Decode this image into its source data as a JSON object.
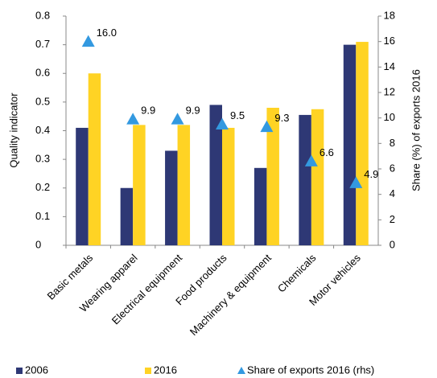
{
  "chart_data": {
    "type": "bar",
    "categories": [
      "Basic metals",
      "Wearing apparel",
      "Electrical equipment",
      "Food products",
      "Machinery & equipment",
      "Chemicals",
      "Motor vehicles"
    ],
    "y_label": "Quality indicator",
    "y2_label": "Share (%)  of exports 2016",
    "ylim": [
      0,
      0.8
    ],
    "yticks": [
      0,
      0.1,
      0.2,
      0.3,
      0.4,
      0.5,
      0.6,
      0.7,
      0.8
    ],
    "y2lim": [
      0,
      18
    ],
    "y2ticks": [
      0,
      2,
      4,
      6,
      8,
      10,
      12,
      14,
      16,
      18
    ],
    "series": [
      {
        "name": "2006",
        "color": "#2e3875",
        "values": [
          0.41,
          0.2,
          0.33,
          0.49,
          0.27,
          0.455,
          0.7
        ]
      },
      {
        "name": "2016",
        "color": "#ffd324",
        "values": [
          0.6,
          0.42,
          0.42,
          0.41,
          0.48,
          0.475,
          0.71
        ]
      },
      {
        "name": "Share of exports 2016 (rhs)",
        "color": "#3399e0",
        "axis": "y2",
        "values": [
          16,
          9.9,
          9.9,
          9.5,
          9.3,
          6.6,
          4.9
        ],
        "value_labels": [
          "16.0",
          "9.9",
          "9.9",
          "9.5",
          "9.3",
          "6.6",
          "4.9"
        ]
      }
    ]
  }
}
